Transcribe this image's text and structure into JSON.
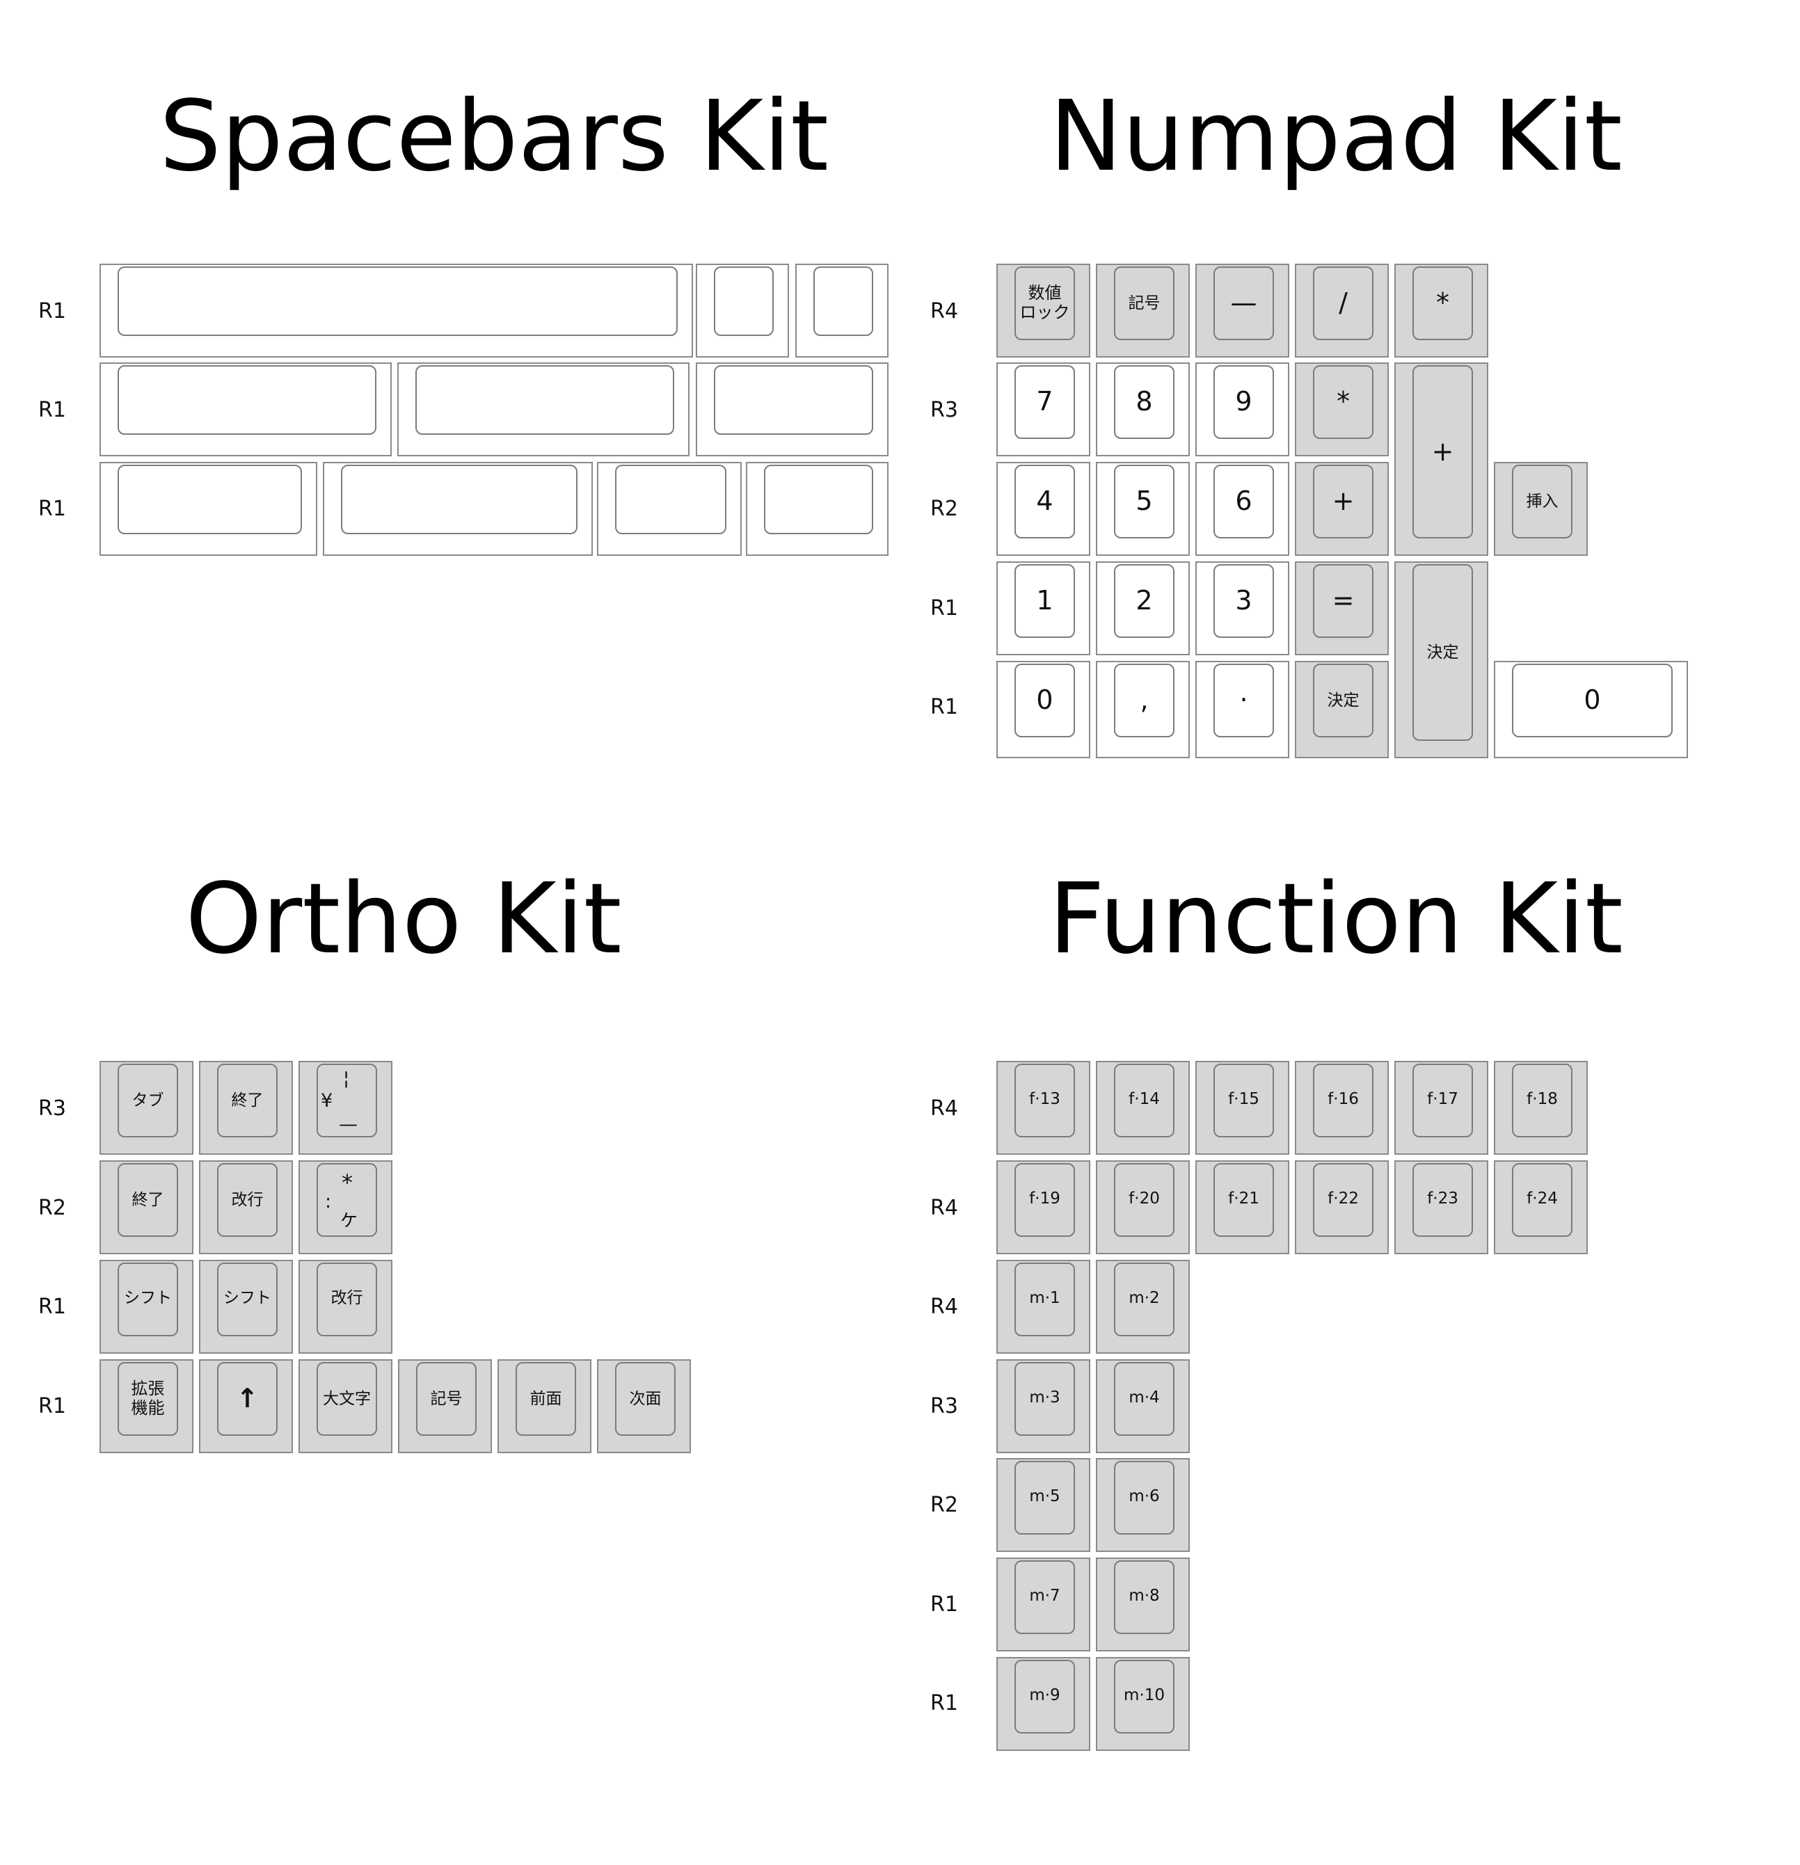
{
  "titles": {
    "spacebars": "Spacebars Kit",
    "numpad": "Numpad Kit",
    "ortho": "Ortho Kit",
    "function": "Function Kit"
  },
  "spacebars": {
    "rows": [
      "R1",
      "R1",
      "R1"
    ]
  },
  "numpad": {
    "rows": [
      "R4",
      "R3",
      "R2",
      "R1",
      "R1"
    ],
    "keys": {
      "numlock": "数値\nロック",
      "symbol": "記号",
      "minus": "—",
      "slash": "/",
      "star_r4": "*",
      "k7": "7",
      "k8": "8",
      "k9": "9",
      "star_r3": "*",
      "plus_tall": "+",
      "k4": "4",
      "k5": "5",
      "k6": "6",
      "plus": "+",
      "insert": "挿入",
      "k1": "1",
      "k2": "2",
      "k3": "3",
      "equals": "=",
      "enter_tall": "決定",
      "k0": "0",
      "comma": ",",
      "dot": "·",
      "enter": "決定",
      "k0_wide": "0"
    }
  },
  "ortho": {
    "rows": [
      "R3",
      "R2",
      "R1",
      "R1"
    ],
    "keys": {
      "tab": "タブ",
      "end_r3": "終了",
      "yen_top": "¦",
      "yen_left": "¥",
      "yen_bottom": "—",
      "end_r2": "終了",
      "return_r2": "改行",
      "colon_top": "*",
      "colon_left": ":",
      "colon_bottom": "ケ",
      "shift1": "シフト",
      "shift2": "シフト",
      "return_r1": "改行",
      "fn": "拡張\n機能",
      "up": "↑",
      "caps": "大文字",
      "symbol": "記号",
      "pgup": "前面",
      "pgdn": "次面"
    }
  },
  "function": {
    "rows": [
      "R4",
      "R4",
      "R4",
      "R3",
      "R2",
      "R1",
      "R1"
    ],
    "f_keys": [
      "f·13",
      "f·14",
      "f·15",
      "f·16",
      "f·17",
      "f·18",
      "f·19",
      "f·20",
      "f·21",
      "f·22",
      "f·23",
      "f·24"
    ],
    "m_keys": [
      "m·1",
      "m·2",
      "m·3",
      "m·4",
      "m·5",
      "m·6",
      "m·7",
      "m·8",
      "m·9",
      "m·10"
    ]
  },
  "colors": {
    "key_gray": "#d6d6d6",
    "key_white": "#ffffff",
    "key_border": "#8a8a8a"
  }
}
